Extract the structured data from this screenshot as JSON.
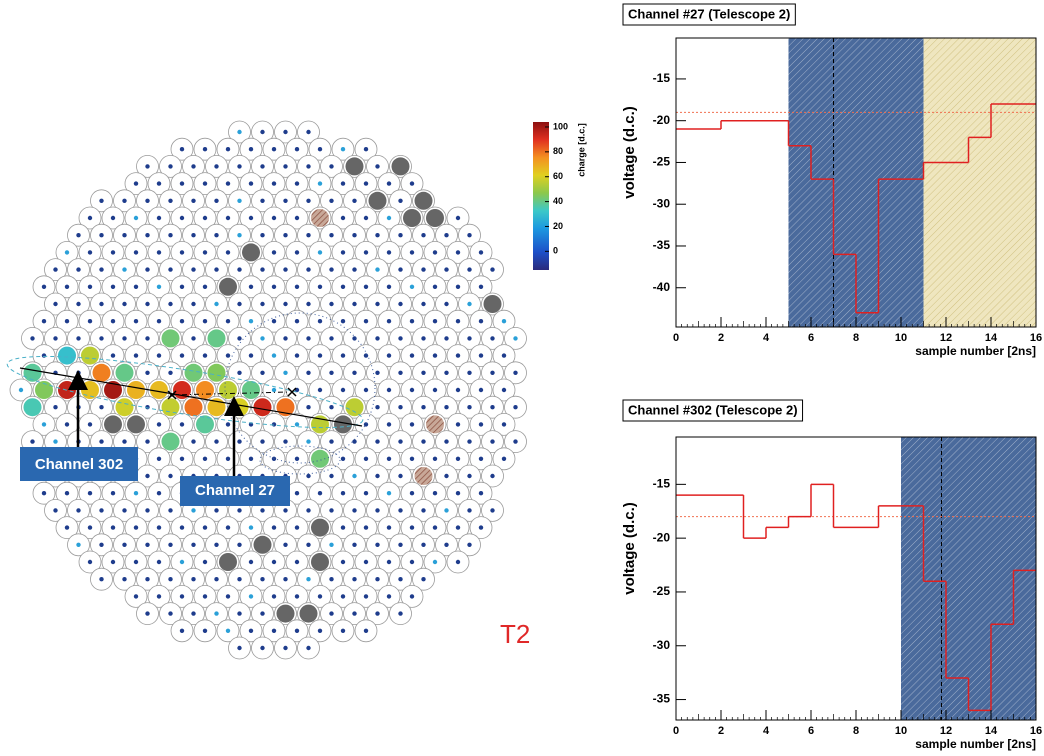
{
  "chart_data": [
    {
      "type": "camera",
      "annotations": [
        "Channel 302",
        "Channel 27",
        "T2"
      ],
      "colorbar": {
        "label": "charge [d.c.]",
        "lim": [
          -15,
          104
        ],
        "ticks": [
          0,
          20,
          40,
          60,
          80,
          100
        ]
      },
      "charges": [
        38,
        30,
        55,
        78,
        40,
        42,
        42,
        40,
        45,
        95,
        65,
        100,
        68,
        66,
        92,
        76,
        55,
        40,
        58,
        56,
        80,
        66,
        60,
        93,
        80,
        55,
        55,
        40,
        42,
        45,
        35,
        38
      ]
    },
    {
      "type": "step",
      "title": "Channel #27 (Telescope 2)",
      "xlabel": "sample number [2ns]",
      "ylabel": "voltage (d.c.)",
      "x": [
        0,
        1,
        2,
        3,
        4,
        5,
        6,
        7,
        8,
        9,
        10,
        11,
        12,
        13,
        14,
        15
      ],
      "values": [
        -21,
        -21,
        -20,
        -20,
        -20,
        -23,
        -27,
        -36,
        -43,
        -27,
        -27,
        -25,
        -25,
        -22,
        -18,
        -18
      ],
      "color": "#e02020",
      "baseline": -19,
      "peak": 7,
      "windows": [
        {
          "range": [
            5,
            11
          ],
          "color": "#4a6a9c"
        },
        {
          "range": [
            11,
            16
          ],
          "color": "#efe6bf"
        }
      ],
      "xlim": [
        0,
        16
      ],
      "xticks": [
        0,
        2,
        4,
        6,
        8,
        10,
        12,
        14,
        16
      ],
      "ylim": [
        -44.7,
        -10.1
      ],
      "yticks": [
        -40,
        -35,
        -30,
        -25,
        -20,
        -15
      ]
    },
    {
      "type": "step",
      "title": "Channel #302 (Telescope 2)",
      "xlabel": "sample number [2ns]",
      "ylabel": "voltage (d.c.)",
      "x": [
        0,
        1,
        2,
        3,
        4,
        5,
        6,
        7,
        8,
        9,
        10,
        11,
        12,
        13,
        14,
        15
      ],
      "values": [
        -16,
        -16,
        -16,
        -20,
        -19,
        -18,
        -15,
        -19,
        -19,
        -17,
        -17,
        -24,
        -33,
        -36,
        -28,
        -23
      ],
      "color": "#e02020",
      "baseline": -18,
      "peak": 11.8,
      "windows": [
        {
          "range": [
            10,
            16
          ],
          "color": "#4a6a9c"
        }
      ],
      "xlim": [
        0,
        16
      ],
      "xticks": [
        0,
        2,
        4,
        6,
        8,
        10,
        12,
        14,
        16
      ],
      "ylim": [
        -36.9,
        -10.6
      ],
      "yticks": [
        -35,
        -30,
        -25,
        -20,
        -15
      ]
    }
  ]
}
